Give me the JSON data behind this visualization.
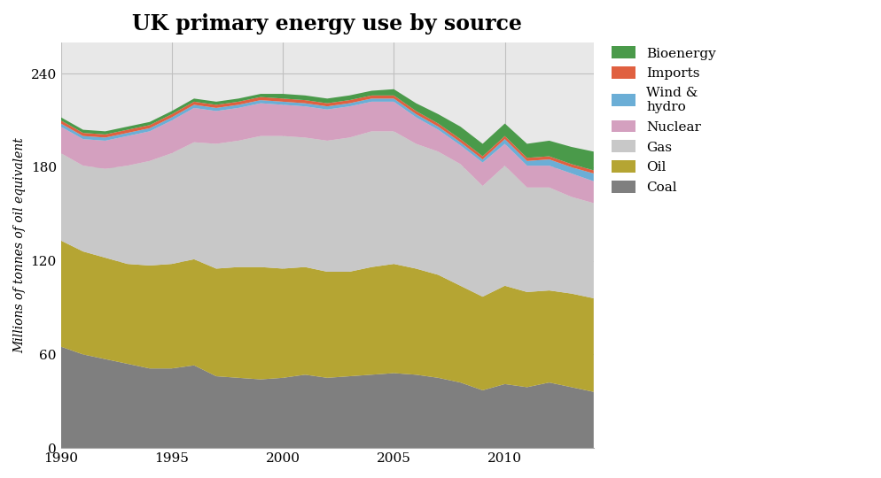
{
  "title": "UK primary energy use by source",
  "ylabel": "Millions of tonnes of oil equivalent",
  "years": [
    1990,
    1991,
    1992,
    1993,
    1994,
    1995,
    1996,
    1997,
    1998,
    1999,
    2000,
    2001,
    2002,
    2003,
    2004,
    2005,
    2006,
    2007,
    2008,
    2009,
    2010,
    2011,
    2012,
    2013,
    2014
  ],
  "coal": [
    65,
    60,
    57,
    54,
    51,
    51,
    53,
    46,
    45,
    44,
    45,
    47,
    45,
    46,
    47,
    48,
    47,
    45,
    42,
    37,
    41,
    39,
    42,
    39,
    36
  ],
  "oil": [
    68,
    66,
    65,
    64,
    66,
    67,
    68,
    69,
    71,
    72,
    70,
    69,
    68,
    67,
    69,
    70,
    68,
    66,
    62,
    60,
    63,
    61,
    59,
    60,
    60
  ],
  "gas": [
    56,
    55,
    57,
    63,
    67,
    71,
    75,
    80,
    81,
    84,
    85,
    83,
    84,
    86,
    87,
    85,
    80,
    79,
    78,
    71,
    77,
    67,
    66,
    62,
    61
  ],
  "nuclear": [
    17,
    17,
    18,
    19,
    19,
    21,
    22,
    21,
    21,
    21,
    20,
    20,
    20,
    20,
    19,
    19,
    17,
    14,
    12,
    15,
    14,
    14,
    14,
    15,
    14
  ],
  "wind_hydro": [
    2,
    2,
    2,
    2,
    2,
    2,
    2,
    2,
    2,
    2,
    2,
    2,
    2,
    2,
    2,
    2,
    2,
    2,
    2,
    2,
    3,
    3,
    4,
    4,
    5
  ],
  "imports": [
    2,
    2,
    2,
    2,
    2,
    2,
    2,
    2,
    2,
    2,
    2,
    2,
    2,
    2,
    2,
    2,
    2,
    2,
    2,
    2,
    2,
    2,
    2,
    2,
    2
  ],
  "bioenergy": [
    2,
    2,
    2,
    2,
    2,
    2,
    2,
    2,
    2,
    2,
    3,
    3,
    3,
    3,
    3,
    4,
    5,
    6,
    8,
    8,
    8,
    9,
    10,
    11,
    12
  ],
  "colors": {
    "coal": "#7f7f7f",
    "oil": "#b5a533",
    "gas": "#c8c8c8",
    "nuclear": "#d4a0bf",
    "wind_hydro": "#6baed6",
    "imports": "#e06040",
    "bioenergy": "#4a9a4a"
  },
  "ylim": [
    0,
    260
  ],
  "yticks": [
    0,
    60,
    120,
    180,
    240
  ],
  "xlim": [
    1990,
    2014
  ],
  "xticks": [
    1990,
    1995,
    2000,
    2005,
    2010
  ],
  "title_fontsize": 17,
  "label_fontsize": 10,
  "legend_fontsize": 11,
  "tick_fontsize": 11,
  "background_color": "#ffffff",
  "grid_color": "#c0c0c0",
  "plot_bg_color": "#e8e8e8"
}
